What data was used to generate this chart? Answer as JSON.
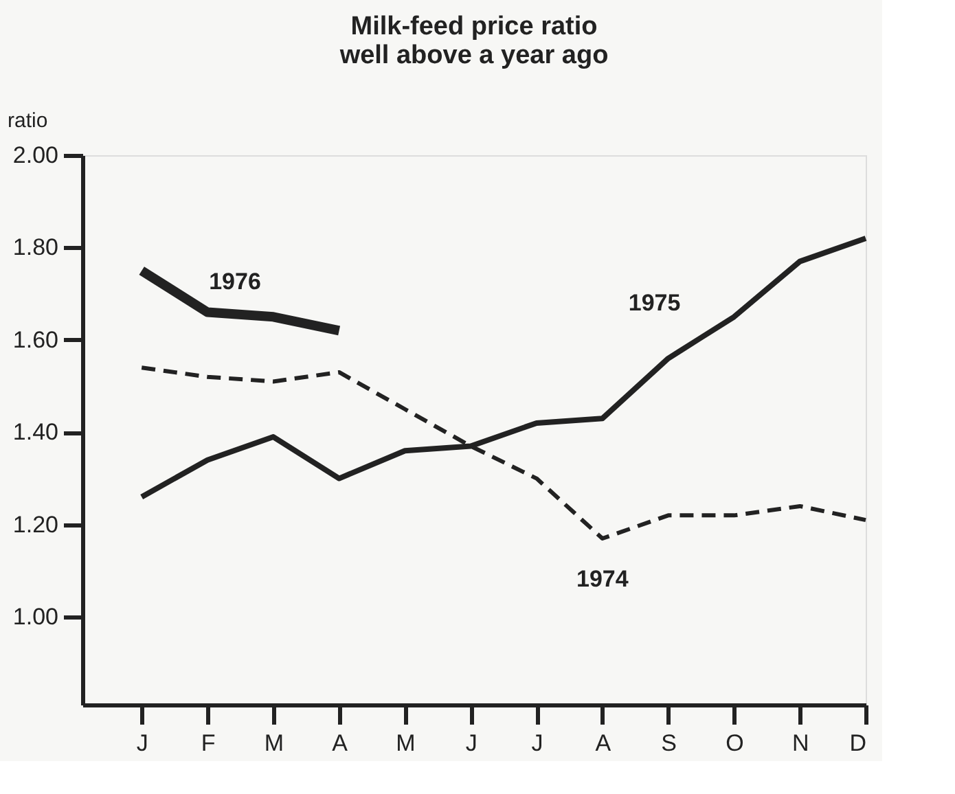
{
  "chart_data": {
    "type": "line",
    "title": "Milk-feed price ratio\nwell above a year ago",
    "ylabel": "ratio",
    "categories": [
      "J",
      "F",
      "M",
      "A",
      "M",
      "J",
      "J",
      "A",
      "S",
      "O",
      "N",
      "D"
    ],
    "series": [
      {
        "name": "1976",
        "color": "#222222",
        "line_style": "solid",
        "values": [
          1.75,
          1.66,
          1.65,
          1.62,
          null,
          null,
          null,
          null,
          null,
          null,
          null,
          null
        ]
      },
      {
        "name": "1975",
        "color": "#222222",
        "line_style": "solid",
        "values": [
          1.26,
          1.34,
          1.39,
          1.3,
          1.36,
          1.37,
          1.42,
          1.43,
          1.56,
          1.65,
          1.77,
          1.82
        ]
      },
      {
        "name": "1974",
        "color": "#222222",
        "line_style": "dashed",
        "values": [
          1.54,
          1.52,
          1.51,
          1.53,
          1.45,
          1.37,
          1.3,
          1.17,
          1.22,
          1.22,
          1.24,
          1.21
        ]
      }
    ],
    "ylim": [
      0.81,
      2.0
    ],
    "yticks": [
      {
        "value": 1.0,
        "label": "1.00"
      },
      {
        "value": 1.2,
        "label": "1.20"
      },
      {
        "value": 1.4,
        "label": "1.40"
      },
      {
        "value": 1.6,
        "label": "1.60"
      },
      {
        "value": 1.8,
        "label": "1.80"
      },
      {
        "value": 2.0,
        "label": "2.00"
      }
    ],
    "grid": false,
    "marker": "none"
  }
}
